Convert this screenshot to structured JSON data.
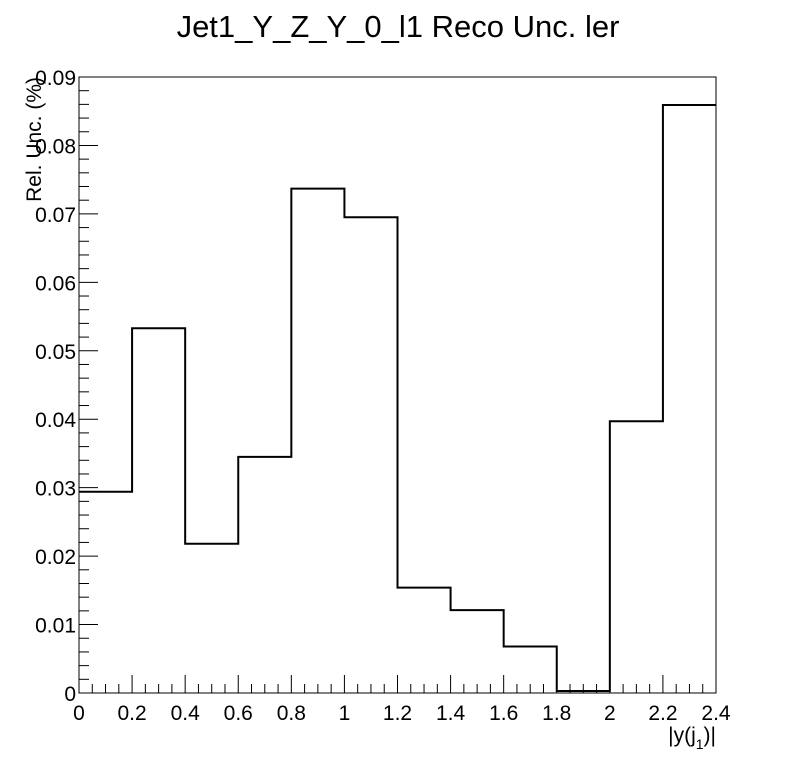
{
  "chart_data": {
    "type": "histogram",
    "title": "Jet1_Y_Z_Y_0_l1 Reco Unc. ler",
    "xlabel": "|y(j_1)|",
    "xlabel_parts": {
      "pre": "|y(j",
      "sub": "1",
      "post": ")|"
    },
    "ylabel": "Rel. Unc. (%)",
    "xlim": [
      0,
      2.4
    ],
    "ylim": [
      0,
      0.09
    ],
    "grid": false,
    "bin_edges": [
      0,
      0.2,
      0.4,
      0.6,
      0.8,
      1.0,
      1.2,
      1.4,
      1.6,
      1.8,
      2.0,
      2.2,
      2.4
    ],
    "values": [
      0.0294,
      0.0533,
      0.0218,
      0.0345,
      0.0737,
      0.0695,
      0.0154,
      0.0121,
      0.0068,
      0.0003,
      0.0397,
      0.0859
    ],
    "x_ticks": [
      {
        "value": 0,
        "label": "0"
      },
      {
        "value": 0.2,
        "label": "0.2"
      },
      {
        "value": 0.4,
        "label": "0.4"
      },
      {
        "value": 0.6,
        "label": "0.6"
      },
      {
        "value": 0.8,
        "label": "0.8"
      },
      {
        "value": 1.0,
        "label": "1"
      },
      {
        "value": 1.2,
        "label": "1.2"
      },
      {
        "value": 1.4,
        "label": "1.4"
      },
      {
        "value": 1.6,
        "label": "1.6"
      },
      {
        "value": 1.8,
        "label": "1.8"
      },
      {
        "value": 2.0,
        "label": "2"
      },
      {
        "value": 2.2,
        "label": "2.2"
      },
      {
        "value": 2.4,
        "label": "2.4"
      }
    ],
    "y_ticks": [
      {
        "value": 0,
        "label": "0"
      },
      {
        "value": 0.01,
        "label": "0.01"
      },
      {
        "value": 0.02,
        "label": "0.02"
      },
      {
        "value": 0.03,
        "label": "0.03"
      },
      {
        "value": 0.04,
        "label": "0.04"
      },
      {
        "value": 0.05,
        "label": "0.05"
      },
      {
        "value": 0.06,
        "label": "0.06"
      },
      {
        "value": 0.07,
        "label": "0.07"
      },
      {
        "value": 0.08,
        "label": "0.08"
      },
      {
        "value": 0.09,
        "label": "0.09"
      }
    ],
    "line_color": "#000000"
  }
}
